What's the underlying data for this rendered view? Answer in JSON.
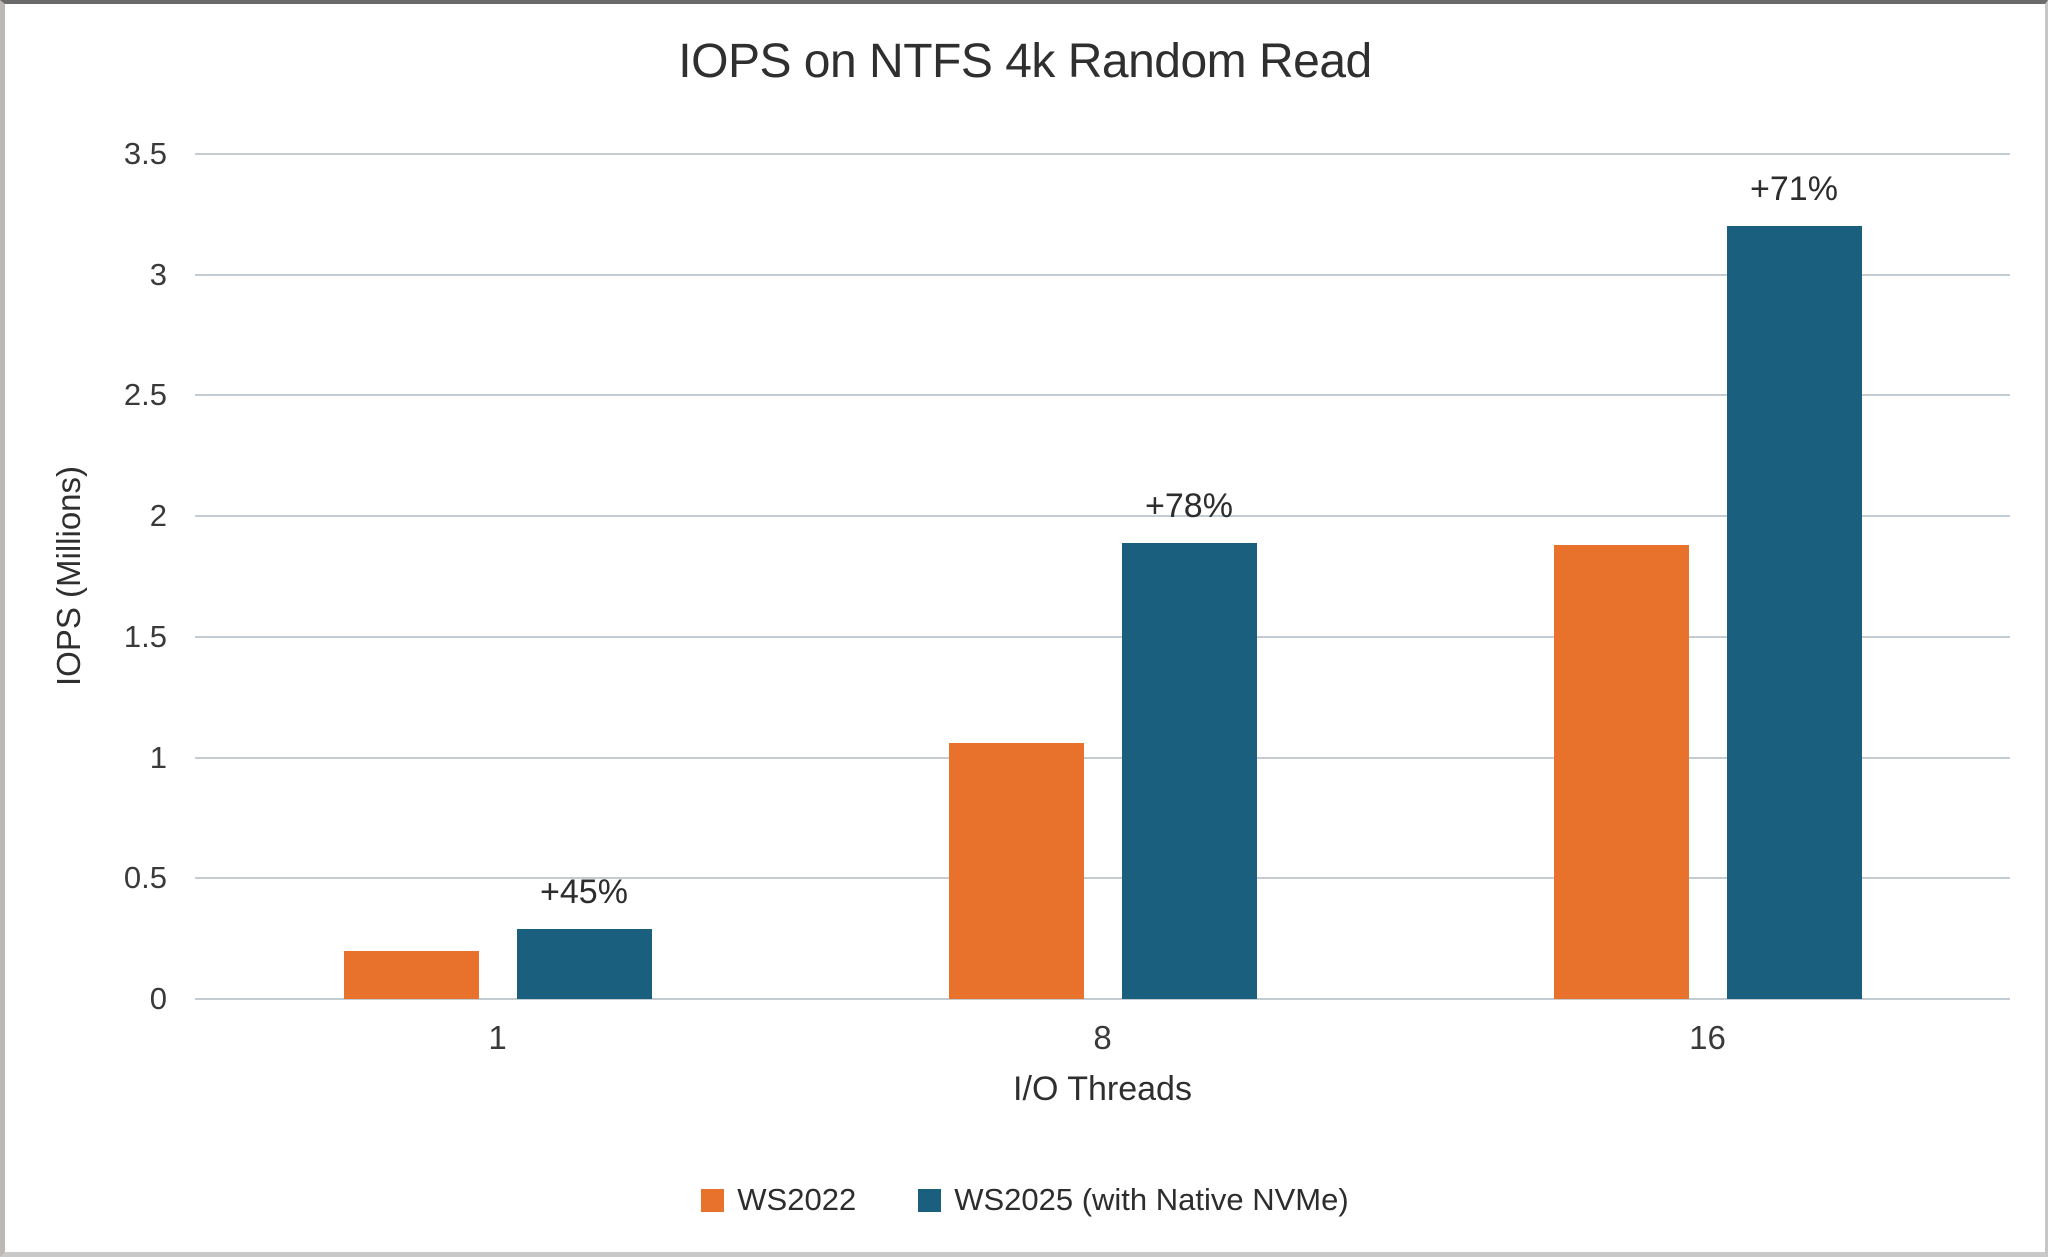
{
  "chart_data": {
    "type": "bar",
    "title": "IOPS on NTFS 4k Random Read",
    "xlabel": "I/O Threads",
    "ylabel": "IOPS (Millions)",
    "categories": [
      "1",
      "8",
      "16"
    ],
    "series": [
      {
        "name": "WS2022",
        "color": "#E8722C",
        "values": [
          0.2,
          1.06,
          1.88
        ]
      },
      {
        "name": "WS2025 (with Native NVMe)",
        "color": "#1A5F7E",
        "values": [
          0.29,
          1.89,
          3.2
        ]
      }
    ],
    "annotations": [
      {
        "category": "1",
        "series": "WS2025 (with Native NVMe)",
        "label": "+45%"
      },
      {
        "category": "8",
        "series": "WS2025 (with Native NVMe)",
        "label": "+78%"
      },
      {
        "category": "16",
        "series": "WS2025 (with Native NVMe)",
        "label": "+71%"
      }
    ],
    "ylim": [
      0,
      3.5
    ],
    "yticks": [
      0,
      0.5,
      1,
      1.5,
      2,
      2.5,
      3,
      3.5
    ],
    "ytick_labels": [
      "0",
      "0.5",
      "1",
      "1.5",
      "2",
      "2.5",
      "3",
      "3.5"
    ],
    "grid": true,
    "legend_position": "bottom"
  },
  "colors": {
    "grid": "#c3ccd2",
    "text": "#333333",
    "background": "#ffffff"
  }
}
